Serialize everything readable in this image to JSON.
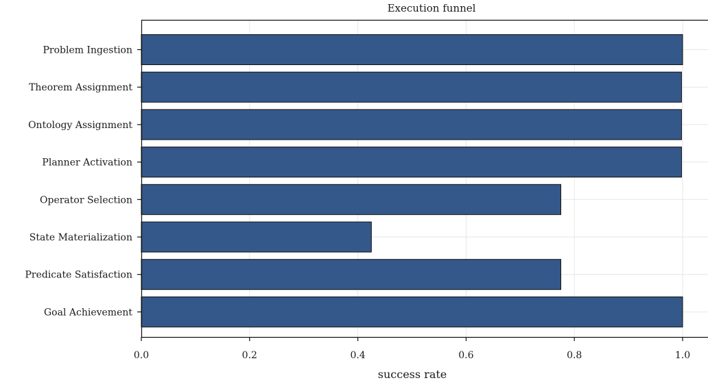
{
  "chart_data": {
    "type": "bar",
    "orientation": "horizontal",
    "title": "Execution funnel",
    "xlabel": "success rate",
    "ylabel": "",
    "xlim": [
      0.0,
      1.05
    ],
    "xticks": [
      "0.0",
      "0.2",
      "0.4",
      "0.6",
      "0.8",
      "1.0"
    ],
    "grid": true,
    "categories": [
      "Problem Ingestion",
      "Theorem Assignment",
      "Ontology Assignment",
      "Planner Activation",
      "Operator Selection",
      "State Materialization",
      "Predicate Satisfaction",
      "Goal Achievement"
    ],
    "values": [
      1.0,
      0.998,
      0.998,
      0.998,
      0.775,
      0.425,
      0.775,
      1.0
    ],
    "bar_color": "#2d5385",
    "edge_color": "#101010"
  }
}
